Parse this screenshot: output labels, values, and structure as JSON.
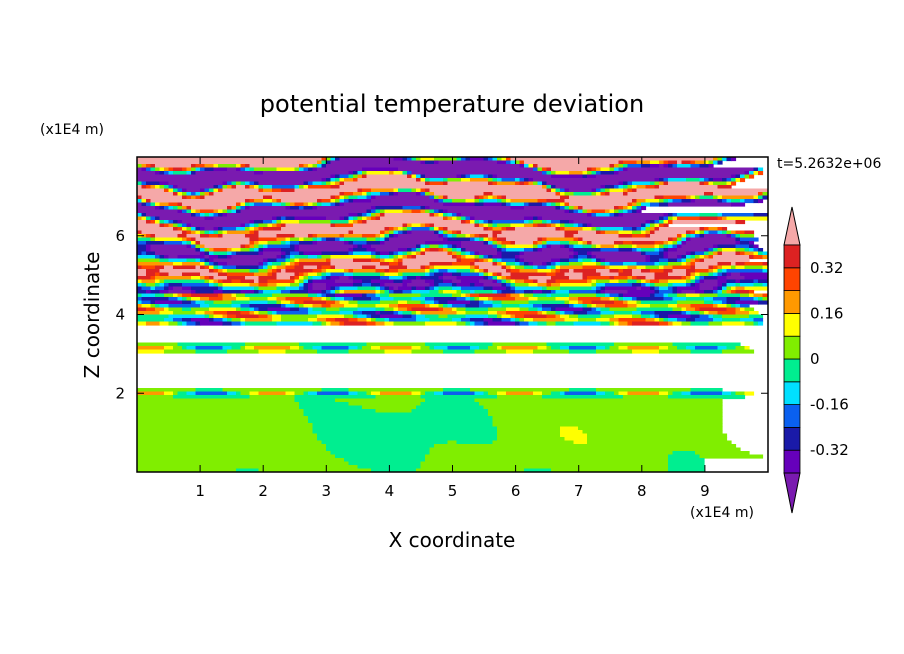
{
  "chart_data": {
    "type": "heatmap",
    "title": "potential temperature deviation",
    "xlabel": "X coordinate",
    "ylabel": "Z coordinate",
    "x_unit": "(x1E4 m)",
    "y_unit": "(x1E4 m)",
    "time_label": "t=5.2632e+06",
    "xlim": [
      0,
      10
    ],
    "ylim": [
      0,
      8
    ],
    "xticks": [
      "1",
      "2",
      "3",
      "4",
      "5",
      "6",
      "7",
      "8",
      "9"
    ],
    "yticks": [
      "2",
      "4",
      "6"
    ],
    "colorbar": {
      "levels": [
        -0.4,
        -0.32,
        -0.24,
        -0.16,
        -0.08,
        0,
        0.08,
        0.16,
        0.24,
        0.32,
        0.4
      ],
      "labels": [
        "-0.32",
        "-0.16",
        "0",
        "0.16",
        "0.32"
      ],
      "label_values": [
        -0.32,
        -0.16,
        0,
        0.16,
        0.32
      ],
      "colors": [
        "#6600bb",
        "#1a1aa8",
        "#0a60f0",
        "#00e0ff",
        "#00ee90",
        "#80ee00",
        "#ffff00",
        "#ff9900",
        "#ff4400",
        "#dd2222"
      ],
      "under_color": "#7a1ab0",
      "over_color": "#f5a8a8",
      "extend": "both"
    },
    "field_description": "Stratified field: near-zero green values below 4e4 m with convective cells near surface, banded purple (<-0.4) and pink (>0.4) layers above 4.5e4 m"
  }
}
